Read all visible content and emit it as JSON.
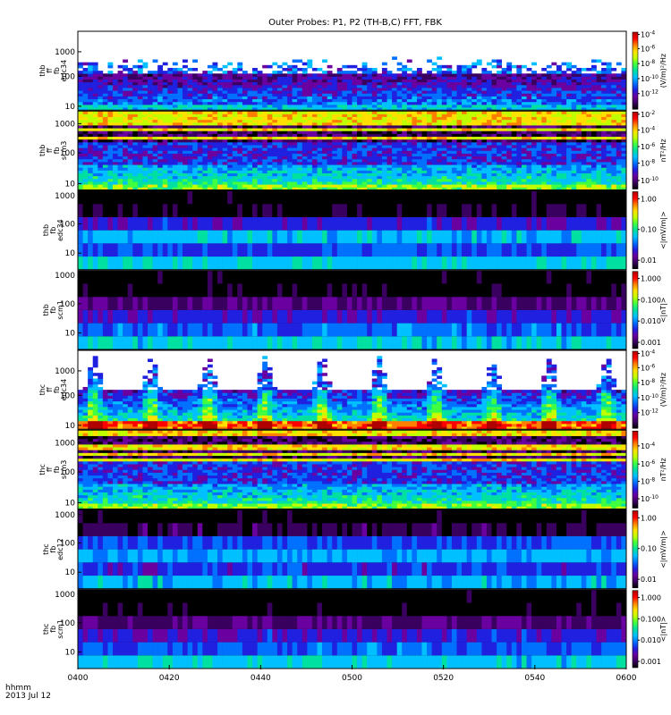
{
  "chart_data": {
    "type": "heatmap",
    "title": "Outer Probes: P1, P2 (TH-B,C) FFT, FBK",
    "x_tick_labels": [
      "0400",
      "0420",
      "0440",
      "0500",
      "0520",
      "0540",
      "0600"
    ],
    "x_range_minutes": [
      0,
      120
    ],
    "footer": {
      "unit": "hhmm",
      "date": "2013 Jul 12"
    },
    "colormap": [
      "#000000",
      "#3a0060",
      "#6a00a0",
      "#2020e0",
      "#0070ff",
      "#00c0ff",
      "#00e0a0",
      "#40ff40",
      "#c0ff00",
      "#ffe000",
      "#ff8000",
      "#ff0000",
      "#b00000"
    ],
    "panels": [
      {
        "labels": [
          "thb",
          "ff",
          "fb",
          "edc34"
        ],
        "style": "fft_e",
        "y_ticks": [
          {
            "label": "1000",
            "frac": 0.26
          },
          {
            "label": "100",
            "frac": 0.57
          },
          {
            "label": "10",
            "frac": 0.95
          }
        ],
        "cbar_ticks": [
          {
            "base": "10",
            "exp": "-4",
            "frac": 0.04
          },
          {
            "base": "10",
            "exp": "-6",
            "frac": 0.22
          },
          {
            "base": "10",
            "exp": "-8",
            "frac": 0.41
          },
          {
            "base": "10",
            "exp": "-10",
            "frac": 0.6
          },
          {
            "base": "10",
            "exp": "-12",
            "frac": 0.79
          }
        ],
        "cbar_label": "(V/m)²/Hz"
      },
      {
        "labels": [
          "thb",
          "ff",
          "fb",
          "scm3"
        ],
        "style": "fft_b",
        "y_ticks": [
          {
            "label": "1000",
            "frac": 0.16
          },
          {
            "label": "100",
            "frac": 0.53
          },
          {
            "label": "10",
            "frac": 0.92
          }
        ],
        "cbar_ticks": [
          {
            "base": "10",
            "exp": "-2",
            "frac": 0.04
          },
          {
            "base": "10",
            "exp": "-4",
            "frac": 0.24
          },
          {
            "base": "10",
            "exp": "-6",
            "frac": 0.45
          },
          {
            "base": "10",
            "exp": "-8",
            "frac": 0.66
          },
          {
            "base": "10",
            "exp": "-10",
            "frac": 0.88
          }
        ],
        "cbar_label": "nT²/Hz"
      },
      {
        "labels": [
          "thb",
          "fb",
          "edc34"
        ],
        "style": "fbk_e",
        "y_ticks": [
          {
            "label": "1000",
            "frac": 0.06
          },
          {
            "label": "100",
            "frac": 0.42
          },
          {
            "label": "10",
            "frac": 0.79
          }
        ],
        "cbar_ticks": [
          {
            "base": "1.00",
            "exp": "",
            "frac": 0.1
          },
          {
            "base": "0.10",
            "exp": "",
            "frac": 0.49
          },
          {
            "base": "0.01",
            "exp": "",
            "frac": 0.88
          }
        ],
        "cbar_label": "<|mV/m|>"
      },
      {
        "labels": [
          "thb",
          "fb",
          "scm1"
        ],
        "style": "fbk_b",
        "y_ticks": [
          {
            "label": "1000",
            "frac": 0.06
          },
          {
            "label": "100",
            "frac": 0.42
          },
          {
            "label": "10",
            "frac": 0.79
          }
        ],
        "cbar_ticks": [
          {
            "base": "1.000",
            "exp": "",
            "frac": 0.1
          },
          {
            "base": "0.100",
            "exp": "",
            "frac": 0.37
          },
          {
            "base": "0.010",
            "exp": "",
            "frac": 0.64
          },
          {
            "base": "0.001",
            "exp": "",
            "frac": 0.91
          }
        ],
        "cbar_label": "<|nT|>"
      },
      {
        "labels": [
          "thc",
          "ff",
          "fb",
          "edc34"
        ],
        "style": "fft_e_thc",
        "y_ticks": [
          {
            "label": "1000",
            "frac": 0.26
          },
          {
            "label": "100",
            "frac": 0.57
          },
          {
            "label": "10",
            "frac": 0.95
          }
        ],
        "cbar_ticks": [
          {
            "base": "10",
            "exp": "-4",
            "frac": 0.04
          },
          {
            "base": "10",
            "exp": "-6",
            "frac": 0.22
          },
          {
            "base": "10",
            "exp": "-8",
            "frac": 0.41
          },
          {
            "base": "10",
            "exp": "-10",
            "frac": 0.6
          },
          {
            "base": "10",
            "exp": "-12",
            "frac": 0.79
          }
        ],
        "cbar_label": "(V/m)²/Hz"
      },
      {
        "labels": [
          "thc",
          "ff",
          "fb",
          "scm3"
        ],
        "style": "fft_b",
        "y_ticks": [
          {
            "label": "1000",
            "frac": 0.16
          },
          {
            "label": "100",
            "frac": 0.53
          },
          {
            "label": "10",
            "frac": 0.92
          }
        ],
        "cbar_ticks": [
          {
            "base": "10",
            "exp": "-4",
            "frac": 0.2
          },
          {
            "base": "10",
            "exp": "-6",
            "frac": 0.43
          },
          {
            "base": "10",
            "exp": "-8",
            "frac": 0.65
          },
          {
            "base": "10",
            "exp": "-10",
            "frac": 0.87
          }
        ],
        "cbar_label": "nT²/Hz"
      },
      {
        "labels": [
          "thc",
          "fb",
          "edc12"
        ],
        "style": "fbk_e_thc",
        "y_ticks": [
          {
            "label": "1000",
            "frac": 0.06
          },
          {
            "label": "100",
            "frac": 0.42
          },
          {
            "label": "10",
            "frac": 0.79
          }
        ],
        "cbar_ticks": [
          {
            "base": "1.00",
            "exp": "",
            "frac": 0.1
          },
          {
            "base": "0.10",
            "exp": "",
            "frac": 0.49
          },
          {
            "base": "0.01",
            "exp": "",
            "frac": 0.88
          }
        ],
        "cbar_label": "<|mV/m|>"
      },
      {
        "labels": [
          "thc",
          "fb",
          "scm1"
        ],
        "style": "fbk_b",
        "y_ticks": [
          {
            "label": "1000",
            "frac": 0.06
          },
          {
            "label": "100",
            "frac": 0.42
          },
          {
            "label": "10",
            "frac": 0.79
          }
        ],
        "cbar_ticks": [
          {
            "base": "1.000",
            "exp": "",
            "frac": 0.1
          },
          {
            "base": "0.100",
            "exp": "",
            "frac": 0.37
          },
          {
            "base": "0.010",
            "exp": "",
            "frac": 0.64
          },
          {
            "base": "0.001",
            "exp": "",
            "frac": 0.91
          }
        ],
        "cbar_label": "<|nT|>"
      }
    ]
  }
}
